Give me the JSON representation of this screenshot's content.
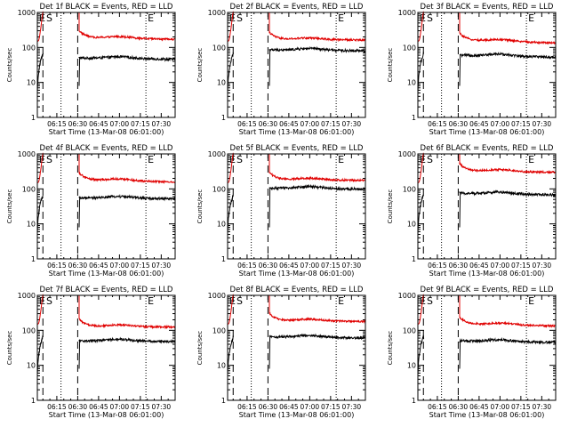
{
  "chart_data": [
    {
      "type": "line",
      "title": "Det 1f BLACK = Events, RED = LLD",
      "xlabel": "Start Time (13-Mar-08 06:01:00)",
      "ylabel": "Counts/sec",
      "yscale": "log",
      "ylim": [
        1,
        1000
      ],
      "ytick_labels": [
        "1",
        "10",
        "100",
        "1000"
      ],
      "xlim": [
        "06:01",
        "07:40"
      ],
      "xtick_labels": [
        "06:15",
        "06:30",
        "06:45",
        "07:00",
        "07:15",
        "07:30"
      ],
      "markers": [
        "E",
        "S",
        "E"
      ],
      "event_level": 50,
      "lld_level": 190,
      "event_drift": 0.08,
      "lld_drift": 0.1
    },
    {
      "type": "line",
      "title": "Det 2f BLACK = Events, RED = LLD",
      "xlabel": "Start Time (13-Mar-08 06:01:00)",
      "ylabel": "Counts/sec",
      "yscale": "log",
      "ylim": [
        1,
        1000
      ],
      "ytick_labels": [
        "1",
        "10",
        "100",
        "1000"
      ],
      "xlim": [
        "06:01",
        "07:40"
      ],
      "xtick_labels": [
        "06:15",
        "06:30",
        "06:45",
        "07:00",
        "07:15",
        "07:30"
      ],
      "markers": [
        "E",
        "S",
        "E"
      ],
      "event_level": 85,
      "lld_level": 170,
      "event_drift": 0.05,
      "lld_drift": 0.04
    },
    {
      "type": "line",
      "title": "Det 3f BLACK = Events, RED = LLD",
      "xlabel": "Start Time (13-Mar-08 06:01:00)",
      "ylabel": "Counts/sec",
      "yscale": "log",
      "ylim": [
        1,
        1000
      ],
      "ytick_labels": [
        "1",
        "10",
        "100",
        "1000"
      ],
      "xlim": [
        "06:01",
        "07:40"
      ],
      "xtick_labels": [
        "06:15",
        "06:30",
        "06:45",
        "07:00",
        "07:15",
        "07:30"
      ],
      "markers": [
        "E",
        "S",
        "E"
      ],
      "event_level": 60,
      "lld_level": 160,
      "event_drift": 0.12,
      "lld_drift": 0.16
    },
    {
      "type": "line",
      "title": "Det 4f BLACK = Events, RED = LLD",
      "xlabel": "Start Time (13-Mar-08 06:01:00)",
      "ylabel": "Counts/sec",
      "yscale": "log",
      "ylim": [
        1,
        1000
      ],
      "ytick_labels": [
        "1",
        "10",
        "100",
        "1000"
      ],
      "xlim": [
        "06:01",
        "07:40"
      ],
      "xtick_labels": [
        "06:15",
        "06:30",
        "06:45",
        "07:00",
        "07:15",
        "07:30"
      ],
      "markers": [
        "E",
        "S",
        "E"
      ],
      "event_level": 55,
      "lld_level": 180,
      "event_drift": 0.04,
      "lld_drift": 0.12
    },
    {
      "type": "line",
      "title": "Det 5f BLACK = Events, RED = LLD",
      "xlabel": "Start Time (13-Mar-08 06:01:00)",
      "ylabel": "Counts/sec",
      "yscale": "log",
      "ylim": [
        1,
        1000
      ],
      "ytick_labels": [
        "1",
        "10",
        "100",
        "1000"
      ],
      "xlim": [
        "06:01",
        "07:40"
      ],
      "xtick_labels": [
        "06:15",
        "06:30",
        "06:45",
        "07:00",
        "07:15",
        "07:30"
      ],
      "markers": [
        "E",
        "S",
        "E"
      ],
      "event_level": 105,
      "lld_level": 185,
      "event_drift": 0.05,
      "lld_drift": 0.05
    },
    {
      "type": "line",
      "title": "Det 6f BLACK = Events, RED = LLD",
      "xlabel": "Start Time (13-Mar-08 06:01:00)",
      "ylabel": "Counts/sec",
      "yscale": "log",
      "ylim": [
        1,
        1000
      ],
      "ytick_labels": [
        "1",
        "10",
        "100",
        "1000"
      ],
      "xlim": [
        "06:01",
        "07:40"
      ],
      "xtick_labels": [
        "06:15",
        "06:30",
        "06:45",
        "07:00",
        "07:15",
        "07:30"
      ],
      "markers": [
        "E",
        "S",
        "E"
      ],
      "event_level": 75,
      "lld_level": 330,
      "event_drift": 0.1,
      "lld_drift": 0.1
    },
    {
      "type": "line",
      "title": "Det 7f BLACK = Events, RED = LLD",
      "xlabel": "Start Time (13-Mar-08 06:01:00)",
      "ylabel": "Counts/sec",
      "yscale": "log",
      "ylim": [
        1,
        1000
      ],
      "ytick_labels": [
        "1",
        "10",
        "100",
        "1000"
      ],
      "xlim": [
        "06:01",
        "07:40"
      ],
      "xtick_labels": [
        "06:15",
        "06:30",
        "06:45",
        "07:00",
        "07:15",
        "07:30"
      ],
      "markers": [
        "E",
        "S",
        "E"
      ],
      "event_level": 50,
      "lld_level": 130,
      "event_drift": 0.04,
      "lld_drift": 0.04
    },
    {
      "type": "line",
      "title": "Det 8f BLACK = Events, RED = LLD",
      "xlabel": "Start Time (13-Mar-08 06:01:00)",
      "ylabel": "Counts/sec",
      "yscale": "log",
      "ylim": [
        1,
        1000
      ],
      "ytick_labels": [
        "1",
        "10",
        "100",
        "1000"
      ],
      "xlim": [
        "06:01",
        "07:40"
      ],
      "xtick_labels": [
        "06:15",
        "06:30",
        "06:45",
        "07:00",
        "07:15",
        "07:30"
      ],
      "markers": [
        "E",
        "S",
        "E"
      ],
      "event_level": 65,
      "lld_level": 190,
      "event_drift": 0.06,
      "lld_drift": 0.06
    },
    {
      "type": "line",
      "title": "Det 9f BLACK = Events, RED = LLD",
      "xlabel": "Start Time (13-Mar-08 06:01:00)",
      "ylabel": "Counts/sec",
      "yscale": "log",
      "ylim": [
        1,
        1000
      ],
      "ytick_labels": [
        "1",
        "10",
        "100",
        "1000"
      ],
      "xlim": [
        "06:01",
        "07:40"
      ],
      "xtick_labels": [
        "06:15",
        "06:30",
        "06:45",
        "07:00",
        "07:15",
        "07:30"
      ],
      "markers": [
        "E",
        "S",
        "E"
      ],
      "event_level": 50,
      "lld_level": 150,
      "event_drift": 0.1,
      "lld_drift": 0.1
    }
  ],
  "colors": {
    "events": "#000000",
    "lld": "#e00000"
  }
}
